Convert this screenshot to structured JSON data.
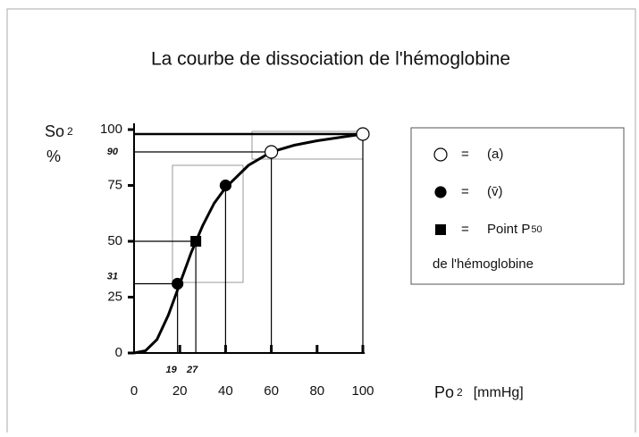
{
  "chart_data": {
    "type": "line",
    "title": "La courbe de dissociation de l'hémoglobine",
    "ylabel": {
      "main": "So",
      "sub": "2",
      "unit": "%"
    },
    "xlabel": {
      "main": "Po",
      "sub": "2",
      "unit": "[mmHg]"
    },
    "xlim": [
      0,
      100
    ],
    "ylim": [
      0,
      100
    ],
    "xticks": [
      0,
      20,
      40,
      60,
      80,
      100
    ],
    "yticks": [
      0,
      25,
      50,
      75,
      100
    ],
    "legend_separator": "=",
    "curve": {
      "color": "#000000",
      "x": [
        0,
        5,
        10,
        15,
        20,
        25,
        30,
        35,
        40,
        50,
        60,
        70,
        80,
        100
      ],
      "values": [
        0,
        1,
        6,
        17,
        31,
        45,
        57,
        67,
        74,
        84,
        90,
        93,
        95,
        98
      ]
    },
    "series": [
      {
        "name": "(a)",
        "marker": "open-circle",
        "x": [
          60,
          100
        ],
        "values": [
          90,
          98
        ]
      },
      {
        "name": "(v̄)",
        "marker": "filled-circle",
        "x": [
          19,
          40
        ],
        "values": [
          31,
          75
        ]
      },
      {
        "name": "Point P",
        "name_sub": "50",
        "name_line2": "de l'hémoglobine",
        "marker": "square",
        "x": [
          27
        ],
        "values": [
          50
        ]
      }
    ]
  }
}
